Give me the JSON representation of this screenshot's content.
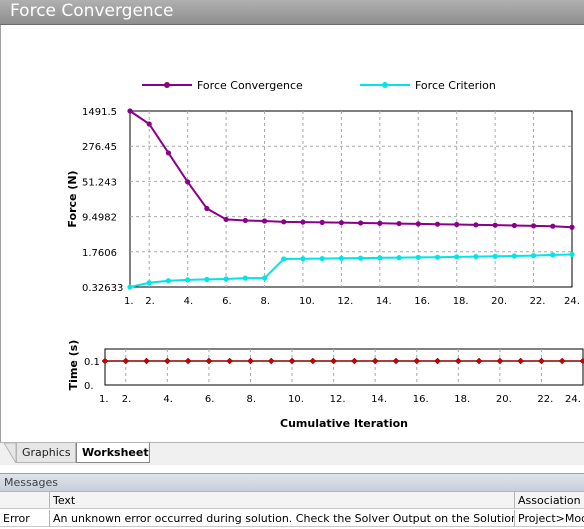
{
  "window": {
    "title": "Force Convergence"
  },
  "chart_data": [
    {
      "type": "line",
      "ylabel": "Force (N)",
      "yscale": "log",
      "yticks": [
        "1491.5",
        "276.45",
        "51.243",
        "9.4982",
        "1.7606",
        "0.32633"
      ],
      "ytick_values": [
        1491.5,
        276.45,
        51.243,
        9.4982,
        1.7606,
        0.32633
      ],
      "ylim": [
        0.32633,
        1491.5
      ],
      "xticks": [
        "1.",
        "2.",
        "4.",
        "6.",
        "8.",
        "10.",
        "12.",
        "14.",
        "16.",
        "18.",
        "20.",
        "22.",
        "24."
      ],
      "xtick_values": [
        1,
        2,
        4,
        6,
        8,
        10,
        12,
        14,
        16,
        18,
        20,
        22,
        24
      ],
      "xlim": [
        1,
        24
      ],
      "grid": true,
      "legend_position": "top",
      "series": [
        {
          "name": "Force Convergence",
          "color": "#8b008b",
          "x": [
            1,
            2,
            3,
            4,
            5,
            6,
            7,
            8,
            9,
            10,
            11,
            12,
            13,
            14,
            15,
            16,
            17,
            18,
            19,
            20,
            21,
            22,
            23,
            24
          ],
          "y": [
            1491.5,
            800,
            200,
            50,
            14,
            8.3,
            7.9,
            7.7,
            7.4,
            7.3,
            7.2,
            7.1,
            7.0,
            6.9,
            6.8,
            6.7,
            6.6,
            6.5,
            6.4,
            6.3,
            6.2,
            6.1,
            6.0,
            5.7
          ]
        },
        {
          "name": "Force Criterion",
          "color": "#00e5e5",
          "x": [
            1,
            2,
            3,
            4,
            5,
            6,
            7,
            8,
            9,
            10,
            11,
            12,
            13,
            14,
            15,
            16,
            17,
            18,
            19,
            20,
            21,
            22,
            23,
            24
          ],
          "y": [
            0.32633,
            0.4,
            0.44,
            0.46,
            0.47,
            0.48,
            0.5,
            0.5,
            1.25,
            1.26,
            1.27,
            1.29,
            1.3,
            1.32,
            1.33,
            1.35,
            1.36,
            1.38,
            1.4,
            1.42,
            1.44,
            1.47,
            1.52,
            1.55
          ]
        }
      ]
    },
    {
      "type": "line",
      "xlabel": "Cumulative Iteration",
      "ylabel": "Time (s)",
      "yticks": [
        "0.1",
        "0."
      ],
      "ytick_values": [
        0.1,
        0
      ],
      "ylim": [
        0,
        0.15
      ],
      "xticks": [
        "1.",
        "2.",
        "4.",
        "6.",
        "8.",
        "10.",
        "12.",
        "14.",
        "16.",
        "18.",
        "20.",
        "22.",
        "24."
      ],
      "xtick_values": [
        1,
        2,
        4,
        6,
        8,
        10,
        12,
        14,
        16,
        18,
        20,
        22,
        24
      ],
      "xlim": [
        1,
        24
      ],
      "grid": true,
      "series": [
        {
          "color": "#8b0000",
          "x": [
            1,
            2,
            3,
            4,
            5,
            6,
            7,
            8,
            9,
            10,
            11,
            12,
            13,
            14,
            15,
            16,
            17,
            18,
            19,
            20,
            21,
            22,
            23,
            24
          ],
          "y": [
            0.1,
            0.1,
            0.1,
            0.1,
            0.1,
            0.1,
            0.1,
            0.1,
            0.1,
            0.1,
            0.1,
            0.1,
            0.1,
            0.1,
            0.1,
            0.1,
            0.1,
            0.1,
            0.1,
            0.1,
            0.1,
            0.1,
            0.1,
            0.1
          ]
        }
      ]
    }
  ],
  "tabs": [
    {
      "label": "Graphics",
      "active": false
    },
    {
      "label": "Worksheet",
      "active": true
    }
  ],
  "messages": {
    "title": "Messages",
    "columns": [
      "",
      "Text",
      "Association"
    ],
    "rows": [
      {
        "type": "Error",
        "text": "An unknown error occurred during solution.  Check the Solver Output on the Solution Information object for possible causes.",
        "association": "Project>Model>Static Structural>Solution"
      }
    ]
  }
}
